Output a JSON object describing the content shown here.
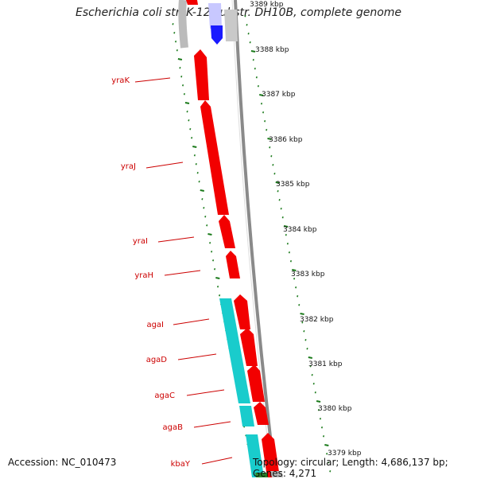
{
  "title": "Escherichia coli str. K-12 substr. DH10B, complete genome",
  "footer": {
    "accession": "Accession: NC_010473",
    "summary": "Topology: circular; Length: 4,686,137 bp; Genes: 4,271"
  },
  "scale_labels": [
    "3389 kbp",
    "3388 kbp",
    "3387 kbp",
    "3386 kbp",
    "3385 kbp",
    "3384 kbp",
    "3383 kbp",
    "3382 kbp",
    "3381 kbp",
    "3380 kbp",
    "3379 kbp"
  ],
  "genes": [
    {
      "label": "yraK",
      "strand": "forward",
      "feature": "CDS"
    },
    {
      "label": "yraJ",
      "strand": "forward",
      "feature": "CDS"
    },
    {
      "label": "yraI",
      "strand": "forward",
      "feature": "CDS"
    },
    {
      "label": "yraH",
      "strand": "forward",
      "feature": "CDS"
    },
    {
      "label": "agaI",
      "strand": "reverse",
      "feature": "CDS"
    },
    {
      "label": "agaD",
      "strand": "reverse",
      "feature": "CDS"
    },
    {
      "label": "agaC",
      "strand": "reverse",
      "feature": "CDS"
    },
    {
      "label": "agaB",
      "strand": "reverse",
      "feature": "CDS"
    },
    {
      "label": "kbaY",
      "strand": "reverse",
      "feature": "CDS"
    }
  ],
  "colors": {
    "cds_forward": "#f20000",
    "cds_reverse": "#f20000",
    "orf": "#1ccccc",
    "other_feature": "#1a1aff",
    "backbone": "#888888",
    "ticks": "#1a7a1a",
    "gene_label": "#cc0000"
  }
}
